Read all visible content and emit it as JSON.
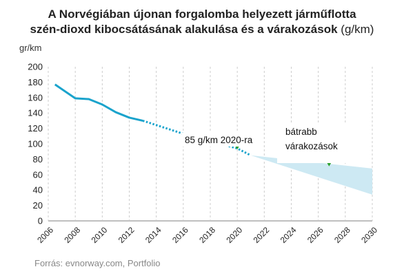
{
  "title_line1": "A Norvégiában újonan forgalomba helyezett  járműflotta",
  "title_line2_bold": "szén-dioxd kibocsátásának alakulása és a várakozások",
  "title_line2_unit": " (g/km)",
  "y_unit": "gr/km",
  "source": "Forrás: evnorway.com, Portfolio",
  "colors": {
    "line": "#1aa3cc",
    "band": "#cde9f3",
    "marker": "#2ca02c",
    "grid": "#cccccc",
    "zero_line": "#999999"
  },
  "chart_data": {
    "type": "line",
    "xlim": [
      2006,
      2030
    ],
    "ylim": [
      0,
      200
    ],
    "y_ticks": [
      "0",
      "20",
      "40",
      "60",
      "80",
      "100",
      "120",
      "140",
      "160",
      "180",
      "200"
    ],
    "x_ticks": [
      "2006",
      "2008",
      "2010",
      "2012",
      "2014",
      "2016",
      "2018",
      "2020",
      "2022",
      "2024",
      "2026",
      "2028",
      "2030"
    ],
    "grid": "vertical dashed",
    "series": [
      {
        "style": "solid",
        "x": [
          2006.5,
          2008,
          2009,
          2010,
          2011,
          2012,
          2013
        ],
        "y": [
          177,
          159,
          158,
          151,
          141,
          134,
          130
        ]
      },
      {
        "style": "dotted",
        "x": [
          2013,
          2016,
          2020,
          2021
        ],
        "y": [
          130,
          113,
          94,
          85
        ]
      }
    ],
    "expectation_band": {
      "x": [
        2021,
        2030
      ],
      "upper": [
        85,
        68
      ],
      "lower": [
        85,
        34
      ]
    },
    "markers": [
      {
        "x": 2020,
        "y": 95
      },
      {
        "x": 2026.8,
        "y": 73
      }
    ],
    "annotations": [
      {
        "text": "85 g/km 2020-ra"
      },
      {
        "text": "bátrabb"
      },
      {
        "text": "várakozások"
      }
    ]
  }
}
